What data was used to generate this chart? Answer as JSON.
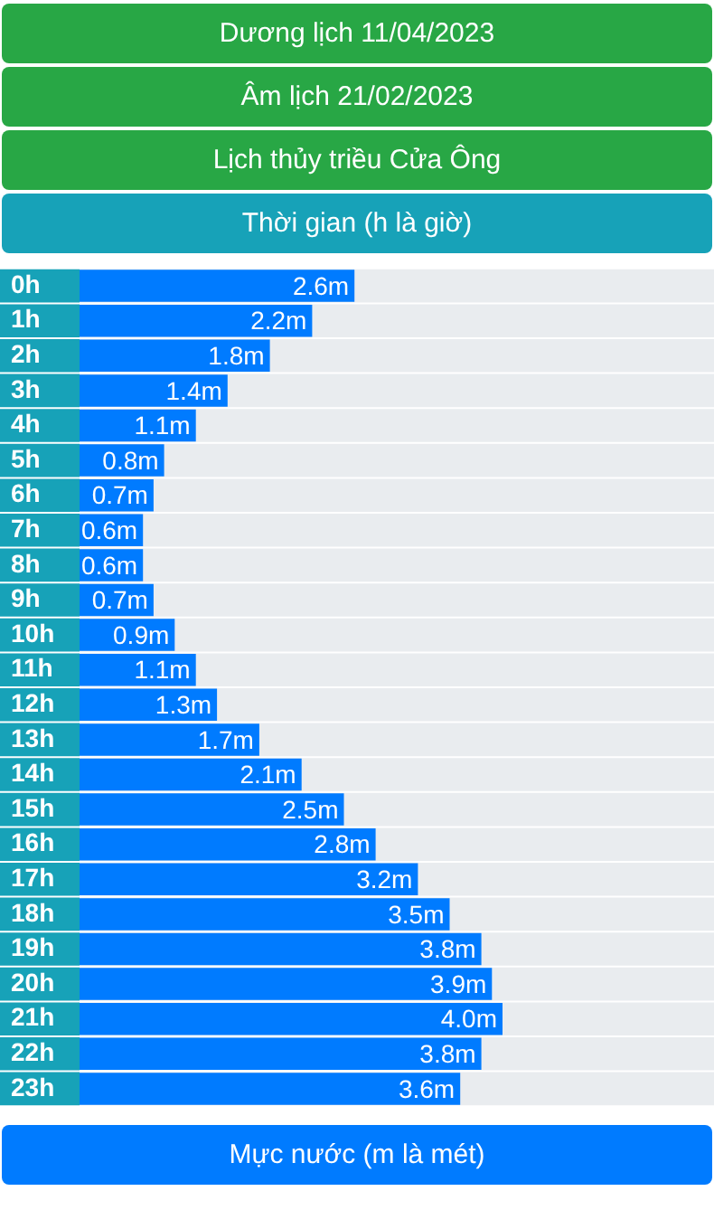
{
  "chart_data": {
    "type": "bar",
    "orientation": "horizontal",
    "annotations": [
      "Dương lịch 11/04/2023",
      "Âm lịch 21/02/2023"
    ],
    "title": "Lịch thủy triều Cửa Ông",
    "ylabel": "Thời gian (h là giờ)",
    "xlabel": "Mực nước (m là mét)",
    "categories": [
      "0h",
      "1h",
      "2h",
      "3h",
      "4h",
      "5h",
      "6h",
      "7h",
      "8h",
      "9h",
      "10h",
      "11h",
      "12h",
      "13h",
      "14h",
      "15h",
      "16h",
      "17h",
      "18h",
      "19h",
      "20h",
      "21h",
      "22h",
      "23h"
    ],
    "values": [
      2.6,
      2.2,
      1.8,
      1.4,
      1.1,
      0.8,
      0.7,
      0.6,
      0.6,
      0.7,
      0.9,
      1.1,
      1.3,
      1.7,
      2.1,
      2.5,
      2.8,
      3.2,
      3.5,
      3.8,
      3.9,
      4.0,
      3.8,
      3.6
    ],
    "value_labels": [
      "2.6m",
      "2.2m",
      "1.8m",
      "1.4m",
      "1.1m",
      "0.8m",
      "0.7m",
      "0.6m",
      "0.6m",
      "0.7m",
      "0.9m",
      "1.1m",
      "1.3m",
      "1.7m",
      "2.1m",
      "2.5m",
      "2.8m",
      "3.2m",
      "3.5m",
      "3.8m",
      "3.9m",
      "4.0m",
      "3.8m",
      "3.6m"
    ],
    "color": "#007bff",
    "xlim": [
      0,
      6
    ],
    "tick_labels": "y",
    "legend": false
  }
}
